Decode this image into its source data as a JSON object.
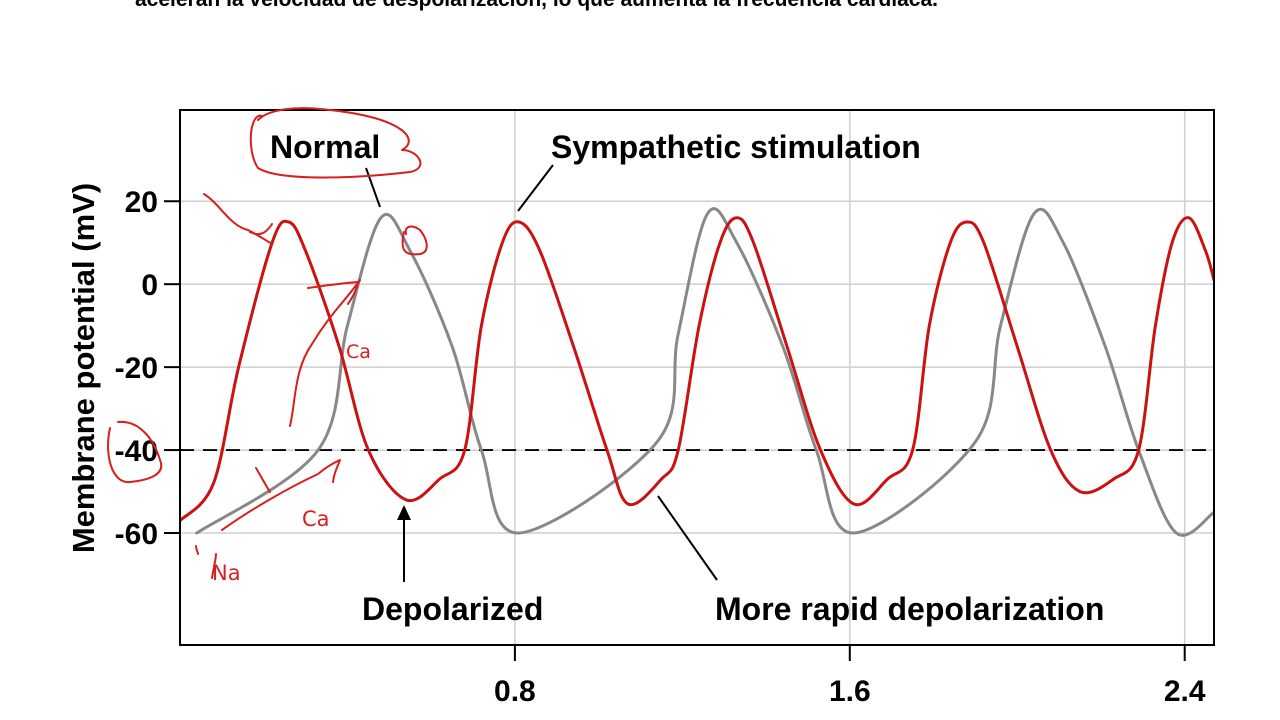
{
  "caption": "aceleran la velocidad de despolarización, lo que aumenta la frecuencia cardíaca.",
  "chart_data": {
    "type": "line",
    "title": "",
    "xlabel": "",
    "ylabel": "Membrane potential (mV)",
    "xlim": [
      0.0,
      2.47
    ],
    "ylim": [
      -87,
      42
    ],
    "x_ticks": [
      0.8,
      1.6,
      2.4
    ],
    "x_tick_labels": [
      "0.8",
      "1.6",
      "2.4"
    ],
    "y_ticks": [
      20,
      0,
      -20,
      -40,
      -60
    ],
    "y_tick_labels": [
      "20",
      "0",
      "-20",
      "-40",
      "-60"
    ],
    "grid": true,
    "threshold": {
      "y": -40,
      "style": "dashed"
    },
    "colors": {
      "normal": "#888888",
      "sympathetic": "#cc1111",
      "threshold": "#000000",
      "ink": "#d81e1e"
    },
    "series": [
      {
        "name": "Normal",
        "color": "#888888",
        "points": [
          [
            0.04,
            -60
          ],
          [
            0.33,
            -40
          ],
          [
            0.4,
            -10
          ],
          [
            0.48,
            16
          ],
          [
            0.55,
            8
          ],
          [
            0.65,
            -15
          ],
          [
            0.72,
            -40
          ],
          [
            0.81,
            -60
          ],
          [
            1.14,
            -38
          ],
          [
            1.19,
            -12
          ],
          [
            1.26,
            17
          ],
          [
            1.33,
            10
          ],
          [
            1.44,
            -15
          ],
          [
            1.52,
            -40
          ],
          [
            1.61,
            -60
          ],
          [
            1.9,
            -38
          ],
          [
            1.96,
            -10
          ],
          [
            2.04,
            17
          ],
          [
            2.11,
            10
          ],
          [
            2.21,
            -15
          ],
          [
            2.29,
            -40
          ],
          [
            2.38,
            -60
          ],
          [
            2.47,
            -55
          ]
        ]
      },
      {
        "name": "Sympathetic stimulation",
        "color": "#cc1111",
        "points": [
          [
            0.0,
            -57
          ],
          [
            0.08,
            -48
          ],
          [
            0.14,
            -20
          ],
          [
            0.22,
            10
          ],
          [
            0.26,
            15
          ],
          [
            0.3,
            8
          ],
          [
            0.38,
            -15
          ],
          [
            0.45,
            -40
          ],
          [
            0.54,
            -52
          ],
          [
            0.62,
            -47
          ],
          [
            0.68,
            -40
          ],
          [
            0.72,
            -10
          ],
          [
            0.77,
            10
          ],
          [
            0.81,
            15
          ],
          [
            0.86,
            8
          ],
          [
            0.94,
            -15
          ],
          [
            1.02,
            -40
          ],
          [
            1.07,
            -53
          ],
          [
            1.15,
            -47
          ],
          [
            1.19,
            -40
          ],
          [
            1.24,
            -10
          ],
          [
            1.29,
            10
          ],
          [
            1.33,
            16
          ],
          [
            1.37,
            10
          ],
          [
            1.45,
            -15
          ],
          [
            1.53,
            -40
          ],
          [
            1.61,
            -53
          ],
          [
            1.69,
            -47
          ],
          [
            1.75,
            -40
          ],
          [
            1.79,
            -10
          ],
          [
            1.84,
            10
          ],
          [
            1.88,
            15
          ],
          [
            1.92,
            10
          ],
          [
            2.0,
            -15
          ],
          [
            2.08,
            -40
          ],
          [
            2.15,
            -50
          ],
          [
            2.23,
            -47
          ],
          [
            2.29,
            -40
          ],
          [
            2.33,
            -10
          ],
          [
            2.37,
            10
          ],
          [
            2.41,
            16
          ],
          [
            2.45,
            8
          ],
          [
            2.47,
            1
          ]
        ]
      }
    ],
    "annotations": [
      {
        "text": "Normal",
        "target": [
          0.48,
          16
        ]
      },
      {
        "text": "Sympathetic stimulation",
        "target": [
          0.81,
          15
        ]
      },
      {
        "text": "Depolarized",
        "target": [
          0.54,
          -53
        ]
      },
      {
        "text": "More rapid depolarization",
        "target": [
          1.15,
          -49
        ]
      }
    ],
    "handwriting": {
      "color": "#d81e1e",
      "labels": [
        {
          "name": "ink-ca-1",
          "text": "Ca"
        },
        {
          "name": "ink-ca-2",
          "text": "Ca"
        },
        {
          "name": "ink-na",
          "text": "Na"
        }
      ]
    }
  }
}
